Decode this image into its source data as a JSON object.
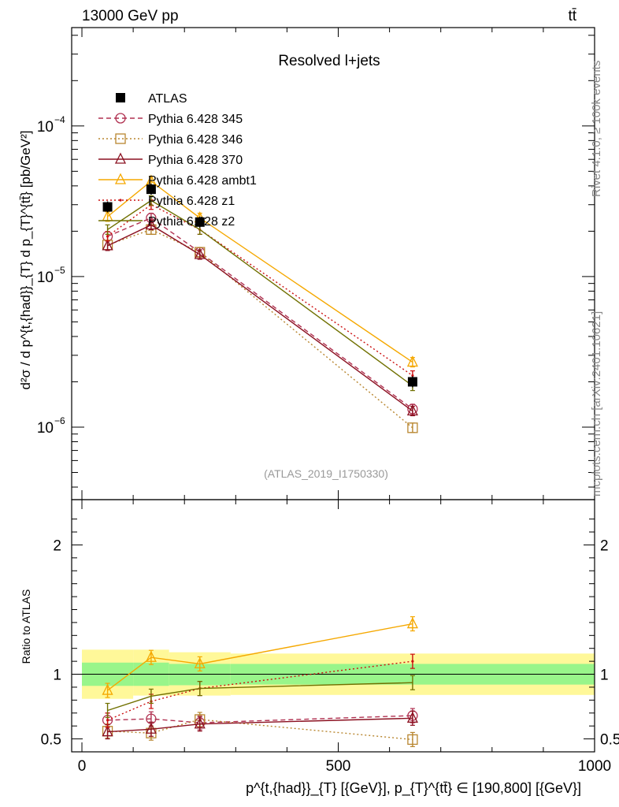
{
  "header": {
    "left": "13000 GeV pp",
    "right": "tt̄"
  },
  "side_text": {
    "top": "Rivet 4.1.0, ≥ 100k events",
    "bottom": "mcplots.cern.ch [arXiv:2401.10621]"
  },
  "chart_data": [
    {
      "type": "line",
      "panel": "main",
      "title": "Resolved l+jets",
      "watermark": "(ATLAS_2019_I1750330)",
      "ylabel": "d²σ / d p^{t,{had}}_{T} d p_{T}^{tt̄} [pb/GeV²]",
      "yscale": "log",
      "ylim": [
        3.3e-07,
        0.00045
      ],
      "xlim": [
        -20,
        1000
      ],
      "y_ticks": [
        {
          "value": 1e-06,
          "base": "10",
          "exp": "−6"
        },
        {
          "value": 1e-05,
          "base": "10",
          "exp": "−5"
        },
        {
          "value": 0.0001,
          "base": "10",
          "exp": "−4"
        }
      ],
      "data": {
        "name": "ATLAS",
        "x": [
          50,
          135,
          230,
          645
        ],
        "y": [
          2.9e-05,
          3.8e-05,
          2.3e-05,
          2e-06
        ]
      },
      "series": [
        {
          "name": "Pythia 6.428 345",
          "color": "#b03050",
          "dash": "6,4",
          "marker": "circle",
          "x": [
            50,
            135,
            230,
            645
          ],
          "y": [
            1.85e-05,
            2.45e-05,
            1.45e-05,
            1.32e-06
          ]
        },
        {
          "name": "Pythia 6.428 346",
          "color": "#b8862f",
          "dash": "2,3",
          "marker": "square",
          "x": [
            50,
            135,
            230,
            645
          ],
          "y": [
            1.62e-05,
            2.05e-05,
            1.45e-05,
            9.9e-07
          ]
        },
        {
          "name": "Pythia 6.428 370",
          "color": "#8b1020",
          "dash": "",
          "marker": "triangle",
          "x": [
            50,
            135,
            230,
            645
          ],
          "y": [
            1.6e-05,
            2.2e-05,
            1.4e-05,
            1.28e-06
          ]
        },
        {
          "name": "Pythia 6.428 ambt1",
          "color": "#f5a800",
          "dash": "",
          "marker": "triangle",
          "x": [
            50,
            135,
            230,
            645
          ],
          "y": [
            2.5e-05,
            4.3e-05,
            2.45e-05,
            2.7e-06
          ]
        },
        {
          "name": "Pythia 6.428 z1",
          "color": "#cc1010",
          "dash": "2,3",
          "marker": "dot",
          "x": [
            50,
            135,
            230,
            645
          ],
          "y": [
            1.85e-05,
            3e-05,
            2.05e-05,
            2.2e-06
          ]
        },
        {
          "name": "Pythia 6.428 z2",
          "color": "#707000",
          "dash": "",
          "marker": "none",
          "x": [
            50,
            135,
            230,
            645
          ],
          "y": [
            2.05e-05,
            3.2e-05,
            2.05e-05,
            1.88e-06
          ]
        }
      ]
    },
    {
      "type": "line",
      "panel": "ratio",
      "ylabel": "Ratio to ATLAS",
      "ylim": [
        0.4,
        2.35
      ],
      "xlim": [
        -20,
        1000
      ],
      "y_ticks": [
        0.5,
        1,
        2
      ],
      "y_tick_labels": [
        "0.5",
        "1",
        "2"
      ],
      "x_ticks": [
        0,
        500,
        1000
      ],
      "x_tick_labels": [
        "0",
        "500",
        "1000"
      ],
      "xlabel": "p^{t,{had}}_{T} [{GeV}], p_{T}^{tt̄} ∈ [190,800] [{GeV}]",
      "bands": {
        "bin_edges": [
          0,
          100,
          170,
          290,
          1000
        ],
        "inner_lo": [
          0.91,
          0.91,
          0.915,
          0.92
        ],
        "inner_hi": [
          1.09,
          1.09,
          1.08,
          1.08
        ],
        "outer_lo": [
          0.81,
          0.835,
          0.835,
          0.84
        ],
        "outer_hi": [
          1.19,
          1.19,
          1.17,
          1.16
        ]
      },
      "series": [
        {
          "name": "Pythia 6.428 345",
          "color": "#b03050",
          "dash": "6,4",
          "marker": "circle",
          "x": [
            50,
            135,
            230,
            645
          ],
          "y": [
            0.645,
            0.655,
            0.625,
            0.68
          ]
        },
        {
          "name": "Pythia 6.428 346",
          "color": "#b8862f",
          "dash": "2,3",
          "marker": "square",
          "x": [
            50,
            135,
            230,
            645
          ],
          "y": [
            0.56,
            0.545,
            0.65,
            0.495
          ]
        },
        {
          "name": "Pythia 6.428 370",
          "color": "#8b1020",
          "dash": "",
          "marker": "triangle",
          "x": [
            50,
            135,
            230,
            645
          ],
          "y": [
            0.555,
            0.575,
            0.615,
            0.66
          ]
        },
        {
          "name": "Pythia 6.428 ambt1",
          "color": "#f5a800",
          "dash": "",
          "marker": "triangle",
          "x": [
            50,
            135,
            230,
            645
          ],
          "y": [
            0.875,
            1.13,
            1.08,
            1.39
          ]
        },
        {
          "name": "Pythia 6.428 z1",
          "color": "#cc1010",
          "dash": "2,3",
          "marker": "dot",
          "x": [
            50,
            135,
            230,
            645
          ],
          "y": [
            0.645,
            0.79,
            0.89,
            1.1
          ]
        },
        {
          "name": "Pythia 6.428 z2",
          "color": "#707000",
          "dash": "",
          "marker": "none",
          "x": [
            50,
            135,
            230,
            645
          ],
          "y": [
            0.72,
            0.83,
            0.89,
            0.935
          ]
        }
      ]
    }
  ]
}
